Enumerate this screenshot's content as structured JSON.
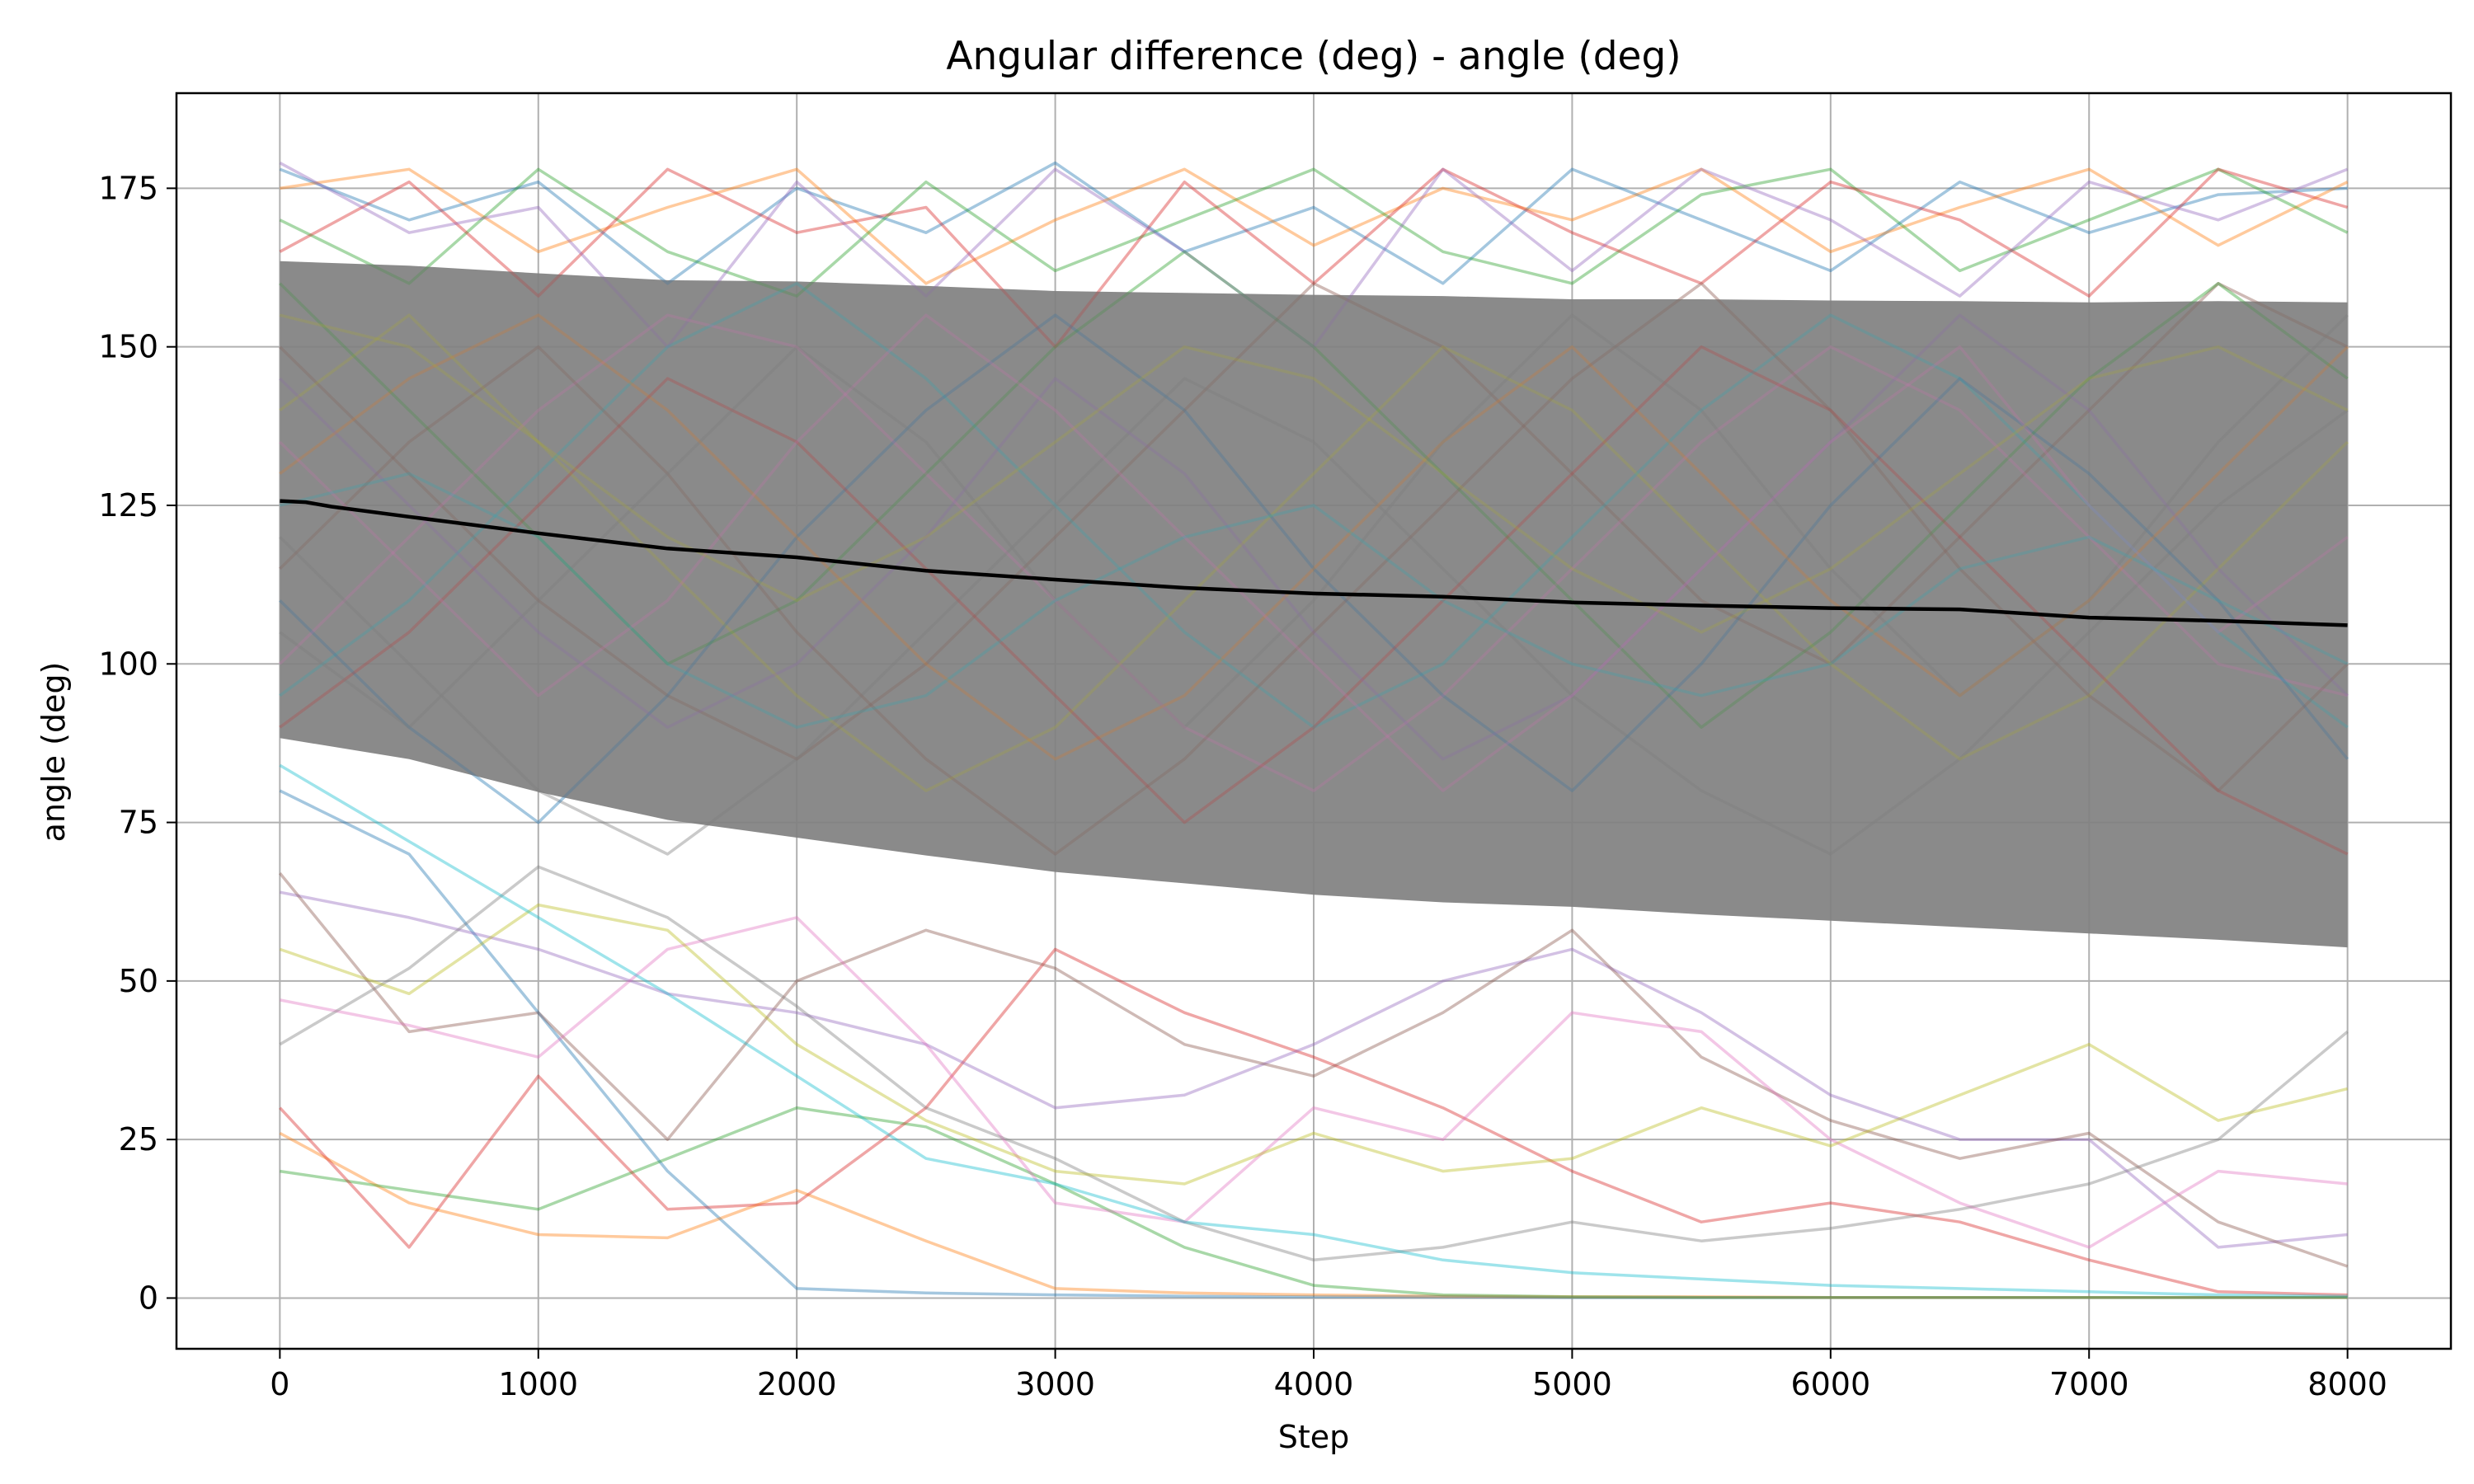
{
  "chart_data": {
    "type": "line",
    "title": "Angular difference (deg) - angle (deg)",
    "xlabel": "Step",
    "ylabel": "angle (deg)",
    "xlim": [
      -400,
      8400
    ],
    "ylim": [
      -8,
      190
    ],
    "xticks": [
      0,
      1000,
      2000,
      3000,
      4000,
      5000,
      6000,
      7000,
      8000
    ],
    "yticks": [
      0,
      25,
      50,
      75,
      100,
      125,
      150,
      175
    ],
    "grid": true,
    "mean_color": "#000000",
    "band_color": "#808080",
    "mean": {
      "x": [
        0,
        100,
        200,
        500,
        1000,
        1500,
        2000,
        2500,
        3000,
        3500,
        4000,
        4500,
        5000,
        5500,
        6000,
        6500,
        7000,
        7500,
        8000
      ],
      "y": [
        125.7,
        125.5,
        124.8,
        123.2,
        120.6,
        118.2,
        116.8,
        114.7,
        113.3,
        112.0,
        111.1,
        110.6,
        109.7,
        109.2,
        108.8,
        108.6,
        107.3,
        106.8,
        106.1
      ]
    },
    "band": {
      "x": [
        0,
        500,
        1000,
        1500,
        2000,
        2500,
        3000,
        3500,
        4000,
        4500,
        5000,
        5500,
        6000,
        6500,
        7000,
        7500,
        8000
      ],
      "lower": [
        88.3,
        85.0,
        79.8,
        75.4,
        72.6,
        69.8,
        67.2,
        65.4,
        63.6,
        62.4,
        61.7,
        60.5,
        59.5,
        58.5,
        57.5,
        56.5,
        55.3
      ],
      "upper": [
        163.5,
        162.8,
        161.6,
        160.5,
        160.3,
        159.6,
        158.8,
        158.5,
        158.2,
        158.0,
        157.5,
        157.5,
        157.3,
        157.2,
        157.0,
        157.2,
        157.0
      ]
    },
    "runs_color_cycle": [
      "#1f77b4",
      "#ff7f0e",
      "#2ca02c",
      "#d62728",
      "#9467bd",
      "#8c564b",
      "#e377c2",
      "#7f7f7f",
      "#bcbd22",
      "#17becf"
    ],
    "runs": [
      {
        "x": [
          0,
          500,
          1000,
          1500,
          2000,
          2500,
          3000,
          3500,
          4000,
          4500,
          5000,
          5500,
          6000,
          6500,
          7000,
          7500,
          8000
        ],
        "y": [
          80,
          70,
          45,
          20,
          1.5,
          0.8,
          0.5,
          0.3,
          0.2,
          0.2,
          0.1,
          0.1,
          0.1,
          0.1,
          0.1,
          0.1,
          0.1
        ]
      },
      {
        "x": [
          0,
          500,
          1000,
          1500,
          2000,
          2500,
          3000,
          3500,
          4000,
          4500,
          5000,
          5500,
          6000,
          6500,
          7000,
          7500,
          8000
        ],
        "y": [
          26,
          15,
          10,
          9.5,
          17,
          9,
          1.5,
          0.8,
          0.5,
          0.3,
          0.2,
          0.2,
          0.1,
          0.1,
          0.1,
          0.1,
          0.1
        ]
      },
      {
        "x": [
          0,
          500,
          1000,
          1500,
          2000,
          2500,
          3000,
          3500,
          4000,
          4500,
          5000,
          5500,
          6000,
          6500,
          7000,
          7500,
          8000
        ],
        "y": [
          20,
          17,
          14,
          22,
          30,
          27,
          18,
          8,
          2,
          0.5,
          0.2,
          0.1,
          0.1,
          0.1,
          0.1,
          0.1,
          0.1
        ]
      },
      {
        "x": [
          0,
          500,
          1000,
          1500,
          2000,
          2500,
          3000,
          3500,
          4000,
          4500,
          5000,
          5500,
          6000,
          6500,
          7000,
          7500,
          8000
        ],
        "y": [
          30,
          8,
          35,
          14,
          15,
          30,
          55,
          45,
          38,
          30,
          20,
          12,
          15,
          12,
          6,
          1,
          0.5
        ]
      },
      {
        "x": [
          0,
          500,
          1000,
          1500,
          2000,
          2500,
          3000,
          3500,
          4000,
          4500,
          5000,
          5500,
          6000,
          6500,
          7000,
          7500,
          8000
        ],
        "y": [
          64,
          60,
          55,
          48,
          45,
          40,
          30,
          32,
          40,
          50,
          55,
          45,
          32,
          25,
          25,
          8,
          10
        ]
      },
      {
        "x": [
          0,
          500,
          1000,
          1500,
          2000,
          2500,
          3000,
          3500,
          4000,
          4500,
          5000,
          5500,
          6000,
          6500,
          7000,
          7500,
          8000
        ],
        "y": [
          67,
          42,
          45,
          25,
          50,
          58,
          52,
          40,
          35,
          45,
          58,
          38,
          28,
          22,
          26,
          12,
          5
        ]
      },
      {
        "x": [
          0,
          500,
          1000,
          1500,
          2000,
          2500,
          3000,
          3500,
          4000,
          4500,
          5000,
          5500,
          6000,
          6500,
          7000,
          7500,
          8000
        ],
        "y": [
          47,
          43,
          38,
          55,
          60,
          40,
          15,
          12,
          30,
          25,
          45,
          42,
          25,
          15,
          8,
          20,
          18
        ]
      },
      {
        "x": [
          0,
          500,
          1000,
          1500,
          2000,
          2500,
          3000,
          3500,
          4000,
          4500,
          5000,
          5500,
          6000,
          6500,
          7000,
          7500,
          8000
        ],
        "y": [
          40,
          52,
          68,
          60,
          46,
          30,
          22,
          12,
          6,
          8,
          12,
          9,
          11,
          14,
          18,
          25,
          42
        ]
      },
      {
        "x": [
          0,
          500,
          1000,
          1500,
          2000,
          2500,
          3000,
          3500,
          4000,
          4500,
          5000,
          5500,
          6000,
          6500,
          7000,
          7500,
          8000
        ],
        "y": [
          55,
          48,
          62,
          58,
          40,
          28,
          20,
          18,
          26,
          20,
          22,
          30,
          24,
          32,
          40,
          28,
          33
        ]
      },
      {
        "x": [
          0,
          500,
          1000,
          1500,
          2000,
          2500,
          3000,
          3500,
          4000,
          4500,
          5000,
          5500,
          6000,
          6500,
          7000,
          7500,
          8000
        ],
        "y": [
          84,
          72,
          60,
          48,
          35,
          22,
          18,
          12,
          10,
          6,
          4,
          3,
          2,
          1.5,
          1,
          0.5,
          0.3
        ]
      },
      {
        "x": [
          0,
          500,
          1000,
          1500,
          2000,
          2500,
          3000,
          3500,
          4000,
          4500,
          5000,
          5500,
          6000,
          6500,
          7000,
          7500,
          8000
        ],
        "y": [
          178,
          170,
          176,
          160,
          175,
          168,
          179,
          165,
          172,
          160,
          178,
          170,
          162,
          176,
          168,
          174,
          175
        ]
      },
      {
        "x": [
          0,
          500,
          1000,
          1500,
          2000,
          2500,
          3000,
          3500,
          4000,
          4500,
          5000,
          5500,
          6000,
          6500,
          7000,
          7500,
          8000
        ],
        "y": [
          175,
          178,
          165,
          172,
          178,
          160,
          170,
          178,
          166,
          175,
          170,
          178,
          165,
          172,
          178,
          166,
          176
        ]
      },
      {
        "x": [
          0,
          500,
          1000,
          1500,
          2000,
          2500,
          3000,
          3500,
          4000,
          4500,
          5000,
          5500,
          6000,
          6500,
          7000,
          7500,
          8000
        ],
        "y": [
          170,
          160,
          178,
          165,
          158,
          176,
          162,
          170,
          178,
          165,
          160,
          174,
          178,
          162,
          170,
          178,
          168
        ]
      },
      {
        "x": [
          0,
          500,
          1000,
          1500,
          2000,
          2500,
          3000,
          3500,
          4000,
          4500,
          5000,
          5500,
          6000,
          6500,
          7000,
          7500,
          8000
        ],
        "y": [
          165,
          176,
          158,
          178,
          168,
          172,
          150,
          176,
          160,
          178,
          168,
          160,
          176,
          170,
          158,
          178,
          172
        ]
      },
      {
        "x": [
          0,
          500,
          1000,
          1500,
          2000,
          2500,
          3000,
          3500,
          4000,
          4500,
          5000,
          5500,
          6000,
          6500,
          7000,
          7500,
          8000
        ],
        "y": [
          179,
          168,
          172,
          150,
          176,
          158,
          178,
          165,
          150,
          178,
          162,
          178,
          170,
          158,
          176,
          170,
          178
        ]
      },
      {
        "x": [
          0,
          500,
          1000,
          1500,
          2000,
          2500,
          3000,
          3500,
          4000,
          4500,
          5000,
          5500,
          6000,
          6500,
          7000,
          7500,
          8000
        ],
        "y": [
          150,
          130,
          110,
          95,
          85,
          100,
          120,
          140,
          160,
          150,
          130,
          110,
          100,
          120,
          140,
          160,
          150
        ]
      },
      {
        "x": [
          0,
          500,
          1000,
          1500,
          2000,
          2500,
          3000,
          3500,
          4000,
          4500,
          5000,
          5500,
          6000,
          6500,
          7000,
          7500,
          8000
        ],
        "y": [
          100,
          120,
          140,
          155,
          150,
          130,
          110,
          90,
          80,
          95,
          115,
          135,
          150,
          140,
          120,
          100,
          95
        ]
      },
      {
        "x": [
          0,
          500,
          1000,
          1500,
          2000,
          2500,
          3000,
          3500,
          4000,
          4500,
          5000,
          5500,
          6000,
          6500,
          7000,
          7500,
          8000
        ],
        "y": [
          120,
          100,
          80,
          70,
          85,
          105,
          125,
          145,
          135,
          115,
          95,
          80,
          70,
          85,
          105,
          125,
          140
        ]
      },
      {
        "x": [
          0,
          500,
          1000,
          1500,
          2000,
          2500,
          3000,
          3500,
          4000,
          4500,
          5000,
          5500,
          6000,
          6500,
          7000,
          7500,
          8000
        ],
        "y": [
          140,
          155,
          135,
          115,
          95,
          80,
          90,
          110,
          130,
          150,
          140,
          120,
          100,
          85,
          95,
          115,
          135
        ]
      },
      {
        "x": [
          0,
          500,
          1000,
          1500,
          2000,
          2500,
          3000,
          3500,
          4000,
          4500,
          5000,
          5500,
          6000,
          6500,
          7000,
          7500,
          8000
        ],
        "y": [
          95,
          110,
          130,
          150,
          160,
          145,
          125,
          105,
          90,
          100,
          120,
          140,
          155,
          145,
          125,
          105,
          90
        ]
      },
      {
        "x": [
          0,
          500,
          1000,
          1500,
          2000,
          2500,
          3000,
          3500,
          4000,
          4500,
          5000,
          5500,
          6000,
          6500,
          7000,
          7500,
          8000
        ],
        "y": [
          110,
          90,
          75,
          95,
          120,
          140,
          155,
          140,
          115,
          95,
          80,
          100,
          125,
          145,
          130,
          110,
          85
        ]
      },
      {
        "x": [
          0,
          500,
          1000,
          1500,
          2000,
          2500,
          3000,
          3500,
          4000,
          4500,
          5000,
          5500,
          6000,
          6500,
          7000,
          7500,
          8000
        ],
        "y": [
          130,
          145,
          155,
          140,
          120,
          100,
          85,
          95,
          115,
          135,
          150,
          130,
          110,
          95,
          110,
          130,
          150
        ]
      },
      {
        "x": [
          0,
          500,
          1000,
          1500,
          2000,
          2500,
          3000,
          3500,
          4000,
          4500,
          5000,
          5500,
          6000,
          6500,
          7000,
          7500,
          8000
        ],
        "y": [
          160,
          140,
          120,
          100,
          110,
          130,
          150,
          165,
          150,
          130,
          110,
          90,
          105,
          125,
          145,
          160,
          145
        ]
      },
      {
        "x": [
          0,
          500,
          1000,
          1500,
          2000,
          2500,
          3000,
          3500,
          4000,
          4500,
          5000,
          5500,
          6000,
          6500,
          7000,
          7500,
          8000
        ],
        "y": [
          90,
          105,
          125,
          145,
          135,
          115,
          95,
          75,
          90,
          110,
          130,
          150,
          140,
          120,
          100,
          80,
          70
        ]
      },
      {
        "x": [
          0,
          500,
          1000,
          1500,
          2000,
          2500,
          3000,
          3500,
          4000,
          4500,
          5000,
          5500,
          6000,
          6500,
          7000,
          7500,
          8000
        ],
        "y": [
          145,
          125,
          105,
          90,
          100,
          120,
          145,
          130,
          105,
          85,
          95,
          115,
          135,
          155,
          140,
          115,
          95
        ]
      },
      {
        "x": [
          0,
          500,
          1000,
          1500,
          2000,
          2500,
          3000,
          3500,
          4000,
          4500,
          5000,
          5500,
          6000,
          6500,
          7000,
          7500,
          8000
        ],
        "y": [
          115,
          135,
          150,
          130,
          105,
          85,
          70,
          85,
          105,
          125,
          145,
          160,
          140,
          115,
          95,
          80,
          100
        ]
      },
      {
        "x": [
          0,
          500,
          1000,
          1500,
          2000,
          2500,
          3000,
          3500,
          4000,
          4500,
          5000,
          5500,
          6000,
          6500,
          7000,
          7500,
          8000
        ],
        "y": [
          135,
          115,
          95,
          110,
          135,
          155,
          140,
          120,
          100,
          80,
          95,
          115,
          135,
          150,
          125,
          105,
          120
        ]
      },
      {
        "x": [
          0,
          500,
          1000,
          1500,
          2000,
          2500,
          3000,
          3500,
          4000,
          4500,
          5000,
          5500,
          6000,
          6500,
          7000,
          7500,
          8000
        ],
        "y": [
          105,
          90,
          110,
          130,
          150,
          135,
          110,
          90,
          110,
          135,
          155,
          140,
          115,
          95,
          110,
          135,
          155
        ]
      },
      {
        "x": [
          0,
          500,
          1000,
          1500,
          2000,
          2500,
          3000,
          3500,
          4000,
          4500,
          5000,
          5500,
          6000,
          6500,
          7000,
          7500,
          8000
        ],
        "y": [
          155,
          150,
          135,
          120,
          110,
          120,
          135,
          150,
          145,
          130,
          115,
          105,
          115,
          130,
          145,
          150,
          140
        ]
      },
      {
        "x": [
          0,
          500,
          1000,
          1500,
          2000,
          2500,
          3000,
          3500,
          4000,
          4500,
          5000,
          5500,
          6000,
          6500,
          7000,
          7500,
          8000
        ],
        "y": [
          125,
          130,
          120,
          100,
          90,
          95,
          110,
          120,
          125,
          110,
          100,
          95,
          100,
          115,
          120,
          110,
          100
        ]
      }
    ]
  }
}
